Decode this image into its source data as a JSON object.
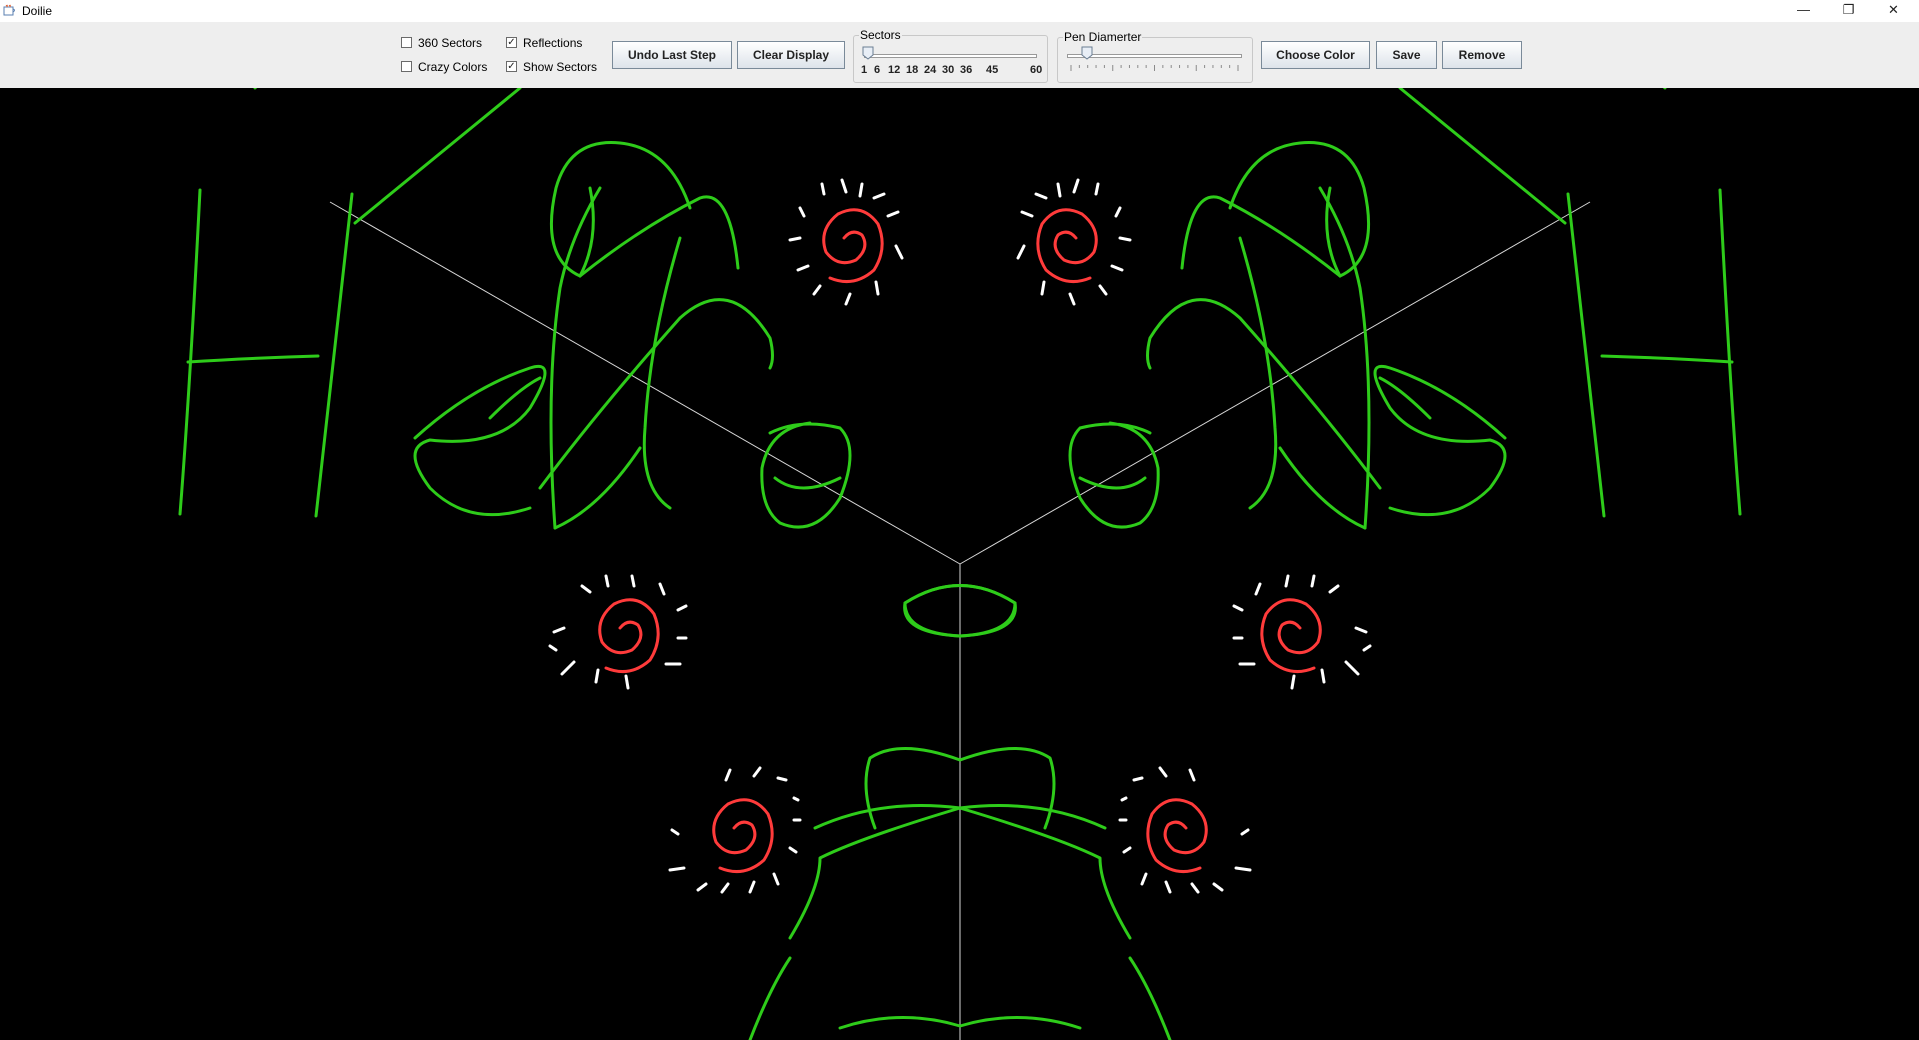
{
  "window": {
    "title": "Doilie",
    "controls": {
      "minimize": "—",
      "restore": "❐",
      "close": "✕"
    }
  },
  "toolbar": {
    "checkboxes": [
      {
        "label": "360 Sectors",
        "checked": false
      },
      {
        "label": "Reflections",
        "checked": true
      },
      {
        "label": "Crazy Colors",
        "checked": false
      },
      {
        "label": "Show Sectors",
        "checked": true
      }
    ],
    "buttons": {
      "undo": "Undo Last Step",
      "clear": "Clear Display",
      "choose_color": "Choose Color",
      "save": "Save",
      "remove": "Remove"
    },
    "sectors": {
      "title": "Sectors",
      "value": 6,
      "ticks": [
        "1",
        "6",
        "12",
        "18",
        "24",
        "30",
        "36",
        "45",
        "60"
      ]
    },
    "pen": {
      "title": "Pen Diamerter",
      "level": 0.12
    }
  },
  "canvas": {
    "background": "#000000",
    "colors": {
      "green": "#2ecc1a",
      "red": "#ff3b3b",
      "white": "#ffffff",
      "sector_line": "#d8d8d8"
    }
  }
}
